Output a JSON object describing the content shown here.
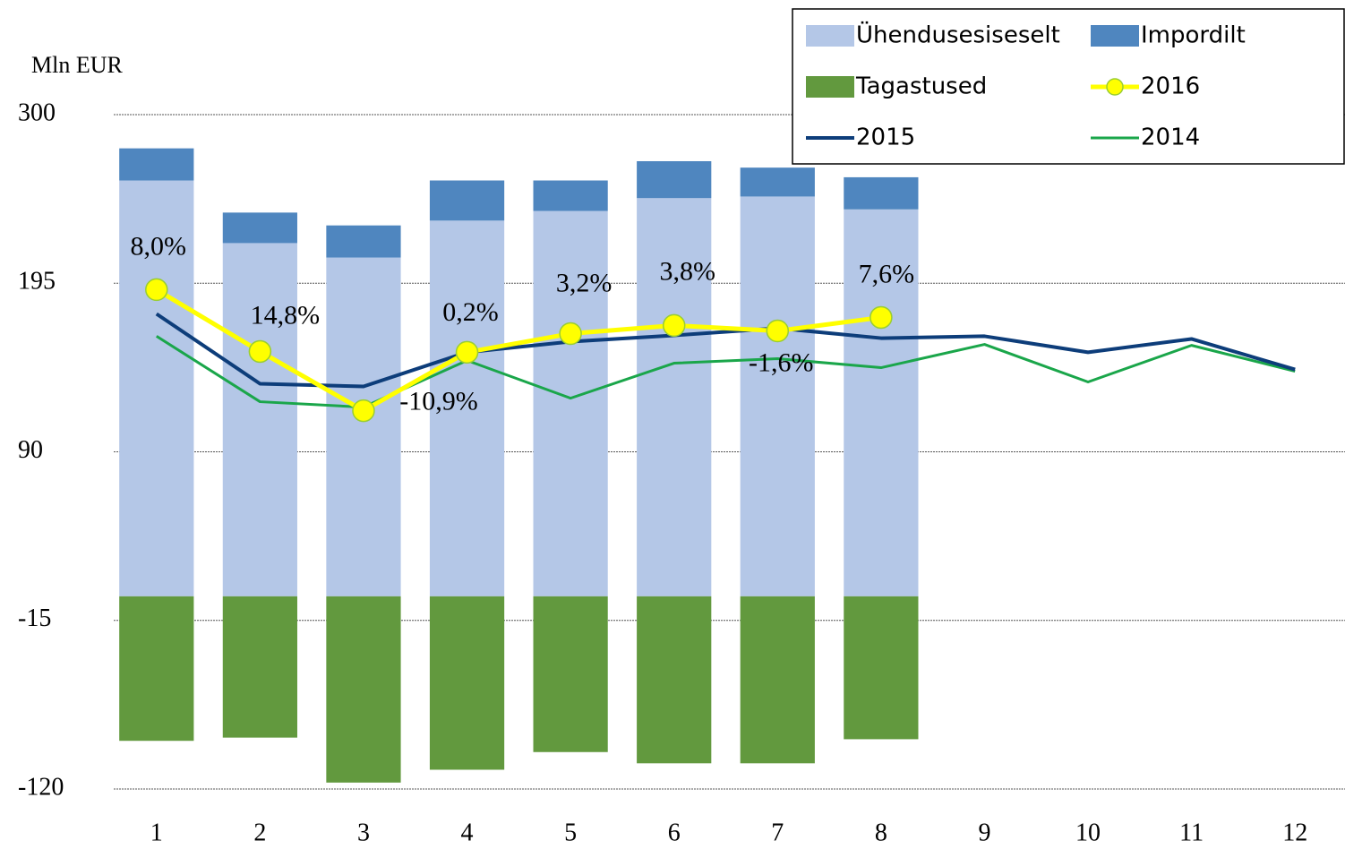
{
  "chart_data": {
    "type": "bar",
    "stacked": true,
    "y_label": "Mln EUR",
    "categories": [
      "1",
      "2",
      "3",
      "4",
      "5",
      "6",
      "7",
      "8",
      "9",
      "10",
      "11",
      "12"
    ],
    "ylim": [
      -120,
      300
    ],
    "yticks": [
      -120,
      -15,
      90,
      195,
      300
    ],
    "grid": true,
    "series": [
      {
        "name": "Ühendusesiseselt",
        "type": "bar",
        "color": "#b4c7e7",
        "values": [
          259,
          220,
          211,
          234,
          240,
          248,
          249,
          241,
          null,
          null,
          null,
          null
        ]
      },
      {
        "name": "Impordilt",
        "type": "bar",
        "color": "#4f86bf",
        "values": [
          20,
          19,
          20,
          25,
          19,
          23,
          18,
          20,
          null,
          null,
          null,
          null
        ]
      },
      {
        "name": "Tagastused",
        "type": "bar",
        "color": "#62993e",
        "values": [
          -90,
          -88,
          -116,
          -108,
          -97,
          -104,
          -104,
          -89,
          null,
          null,
          null,
          null
        ]
      },
      {
        "name": "2016",
        "type": "line",
        "color": "#ffff00",
        "marker": true,
        "values": [
          191,
          152.5,
          115.6,
          152,
          163.6,
          168.7,
          165.3,
          173.7,
          null,
          null,
          null,
          null
        ]
      },
      {
        "name": "2015",
        "type": "line",
        "color": "#0d3d7a",
        "values": [
          175.9,
          132.4,
          130.7,
          152,
          158.6,
          162.5,
          167,
          160.8,
          162,
          152,
          160.3,
          141.3
        ]
      },
      {
        "name": "2014",
        "type": "line",
        "color": "#1aa64a",
        "values": [
          162,
          121.2,
          117.8,
          146.9,
          123.4,
          145.2,
          148,
          142.4,
          156.9,
          133.5,
          156.3,
          140.2
        ]
      }
    ],
    "annotations": [
      "8,0%",
      "14,8%",
      "-10,9%",
      "0,2%",
      "3,2%",
      "3,8%",
      "-1,6%",
      "7,6%"
    ],
    "legend": "top-right"
  }
}
